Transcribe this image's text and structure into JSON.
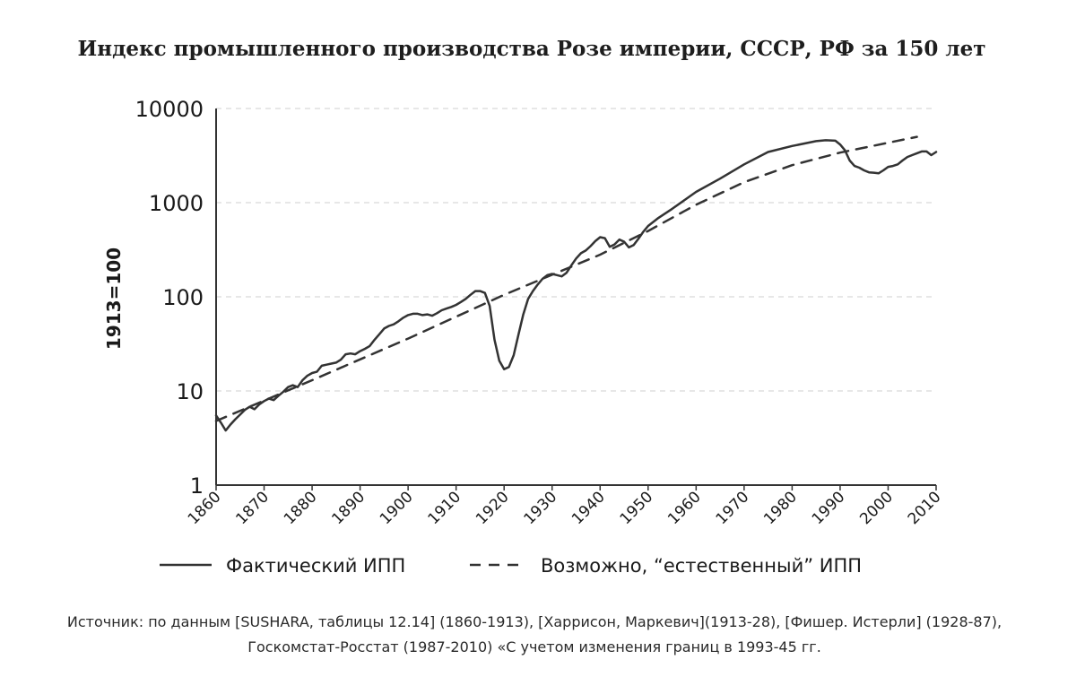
{
  "chart_data": {
    "type": "line",
    "title": "Индекс промышленного производства Розе империи, СССР, РФ за 150 лет",
    "ylabel": "1913=100",
    "xlabel": "",
    "yscale": "log",
    "ylim": [
      1,
      10000
    ],
    "xlim": [
      1860,
      2010
    ],
    "y_ticks": [
      "1",
      "10",
      "100",
      "1000",
      "10000"
    ],
    "x_ticks": [
      "1860",
      "1870",
      "1880",
      "1890",
      "1900",
      "1910",
      "1920",
      "1930",
      "1940",
      "1950",
      "1960",
      "1970",
      "1980",
      "1990",
      "2000",
      "2010"
    ],
    "grid": true,
    "legend_position": "bottom",
    "colors": {
      "line": "#333333",
      "axis": "#333333",
      "grid": "#cfcfcf"
    },
    "series": [
      {
        "name": "Фактический ИПП",
        "style": "solid",
        "points": [
          [
            1860,
            5.5
          ],
          [
            1861,
            4.6
          ],
          [
            1862,
            3.8
          ],
          [
            1863,
            4.4
          ],
          [
            1864,
            5.0
          ],
          [
            1865,
            5.6
          ],
          [
            1866,
            6.3
          ],
          [
            1867,
            6.8
          ],
          [
            1868,
            6.4
          ],
          [
            1869,
            7.2
          ],
          [
            1870,
            7.8
          ],
          [
            1871,
            8.3
          ],
          [
            1872,
            8.0
          ],
          [
            1873,
            8.9
          ],
          [
            1874,
            9.8
          ],
          [
            1875,
            11.0
          ],
          [
            1876,
            11.5
          ],
          [
            1877,
            11.0
          ],
          [
            1878,
            13.0
          ],
          [
            1879,
            14.5
          ],
          [
            1880,
            15.5
          ],
          [
            1881,
            16.0
          ],
          [
            1882,
            18.5
          ],
          [
            1883,
            19.0
          ],
          [
            1884,
            19.5
          ],
          [
            1885,
            20.0
          ],
          [
            1886,
            21.5
          ],
          [
            1887,
            24.5
          ],
          [
            1888,
            25.0
          ],
          [
            1889,
            24.5
          ],
          [
            1890,
            26.5
          ],
          [
            1891,
            28.0
          ],
          [
            1892,
            30.0
          ],
          [
            1893,
            35.0
          ],
          [
            1894,
            40.0
          ],
          [
            1895,
            46.0
          ],
          [
            1896,
            49.0
          ],
          [
            1897,
            51.0
          ],
          [
            1898,
            55.0
          ],
          [
            1899,
            60.0
          ],
          [
            1900,
            64.0
          ],
          [
            1901,
            66.0
          ],
          [
            1902,
            66.0
          ],
          [
            1903,
            64.0
          ],
          [
            1904,
            65.0
          ],
          [
            1905,
            63.0
          ],
          [
            1906,
            67.0
          ],
          [
            1907,
            72.0
          ],
          [
            1908,
            75.0
          ],
          [
            1909,
            78.0
          ],
          [
            1910,
            82.0
          ],
          [
            1911,
            88.0
          ],
          [
            1912,
            95.0
          ],
          [
            1913,
            105.0
          ],
          [
            1914,
            115.0
          ],
          [
            1915,
            115.0
          ],
          [
            1916,
            110.0
          ],
          [
            1917,
            80.0
          ],
          [
            1918,
            35.0
          ],
          [
            1919,
            21.0
          ],
          [
            1920,
            17.0
          ],
          [
            1921,
            18.0
          ],
          [
            1922,
            24.0
          ],
          [
            1923,
            40.0
          ],
          [
            1924,
            65.0
          ],
          [
            1925,
            95.0
          ],
          [
            1926,
            115.0
          ],
          [
            1927,
            135.0
          ],
          [
            1928,
            155.0
          ],
          [
            1929,
            170.0
          ],
          [
            1930,
            175.0
          ],
          [
            1931,
            170.0
          ],
          [
            1932,
            165.0
          ],
          [
            1933,
            180.0
          ],
          [
            1934,
            215.0
          ],
          [
            1935,
            255.0
          ],
          [
            1936,
            290.0
          ],
          [
            1937,
            310.0
          ],
          [
            1938,
            345.0
          ],
          [
            1939,
            390.0
          ],
          [
            1940,
            430.0
          ],
          [
            1941,
            420.0
          ],
          [
            1942,
            340.0
          ],
          [
            1943,
            360.0
          ],
          [
            1944,
            405.0
          ],
          [
            1945,
            385.0
          ],
          [
            1946,
            335.0
          ],
          [
            1947,
            355.0
          ],
          [
            1948,
            415.0
          ],
          [
            1949,
            490.0
          ],
          [
            1950,
            565.0
          ],
          [
            1952,
            680.0
          ],
          [
            1955,
            860.0
          ],
          [
            1960,
            1300.0
          ],
          [
            1965,
            1800.0
          ],
          [
            1970,
            2550.0
          ],
          [
            1975,
            3450.0
          ],
          [
            1980,
            4000.0
          ],
          [
            1985,
            4500.0
          ],
          [
            1987,
            4600.0
          ],
          [
            1989,
            4550.0
          ],
          [
            1990,
            4150.0
          ],
          [
            1991,
            3600.0
          ],
          [
            1992,
            2800.0
          ],
          [
            1993,
            2450.0
          ],
          [
            1994,
            2350.0
          ],
          [
            1995,
            2200.0
          ],
          [
            1996,
            2100.0
          ],
          [
            1997,
            2080.0
          ],
          [
            1998,
            2050.0
          ],
          [
            1999,
            2200.0
          ],
          [
            2000,
            2400.0
          ],
          [
            2001,
            2450.0
          ],
          [
            2002,
            2550.0
          ],
          [
            2003,
            2800.0
          ],
          [
            2004,
            3050.0
          ],
          [
            2005,
            3200.0
          ],
          [
            2006,
            3350.0
          ],
          [
            2007,
            3500.0
          ],
          [
            2008,
            3500.0
          ],
          [
            2009,
            3200.0
          ],
          [
            2010,
            3450.0
          ]
        ]
      },
      {
        "name": "Возможно, “естественный” ИПП",
        "style": "dashed",
        "points": [
          [
            1860,
            4.8
          ],
          [
            1880,
            13.0
          ],
          [
            1900,
            36.0
          ],
          [
            1920,
            105.0
          ],
          [
            1940,
            280.0
          ],
          [
            1950,
            500.0
          ],
          [
            1960,
            950.0
          ],
          [
            1970,
            1650.0
          ],
          [
            1980,
            2500.0
          ],
          [
            1990,
            3400.0
          ],
          [
            2006,
            5000.0
          ]
        ]
      }
    ]
  },
  "source_note": {
    "line1": "Источник: по данным [SUSHARA, таблицы 12.14] (1860-1913), [Харрисон, Маркевич](1913-28), [Фишер. Истерли] (1928-87),",
    "line2": "Госкомстат-Росстат (1987-2010) «С учетом изменения границ в 1993-45 гг."
  }
}
